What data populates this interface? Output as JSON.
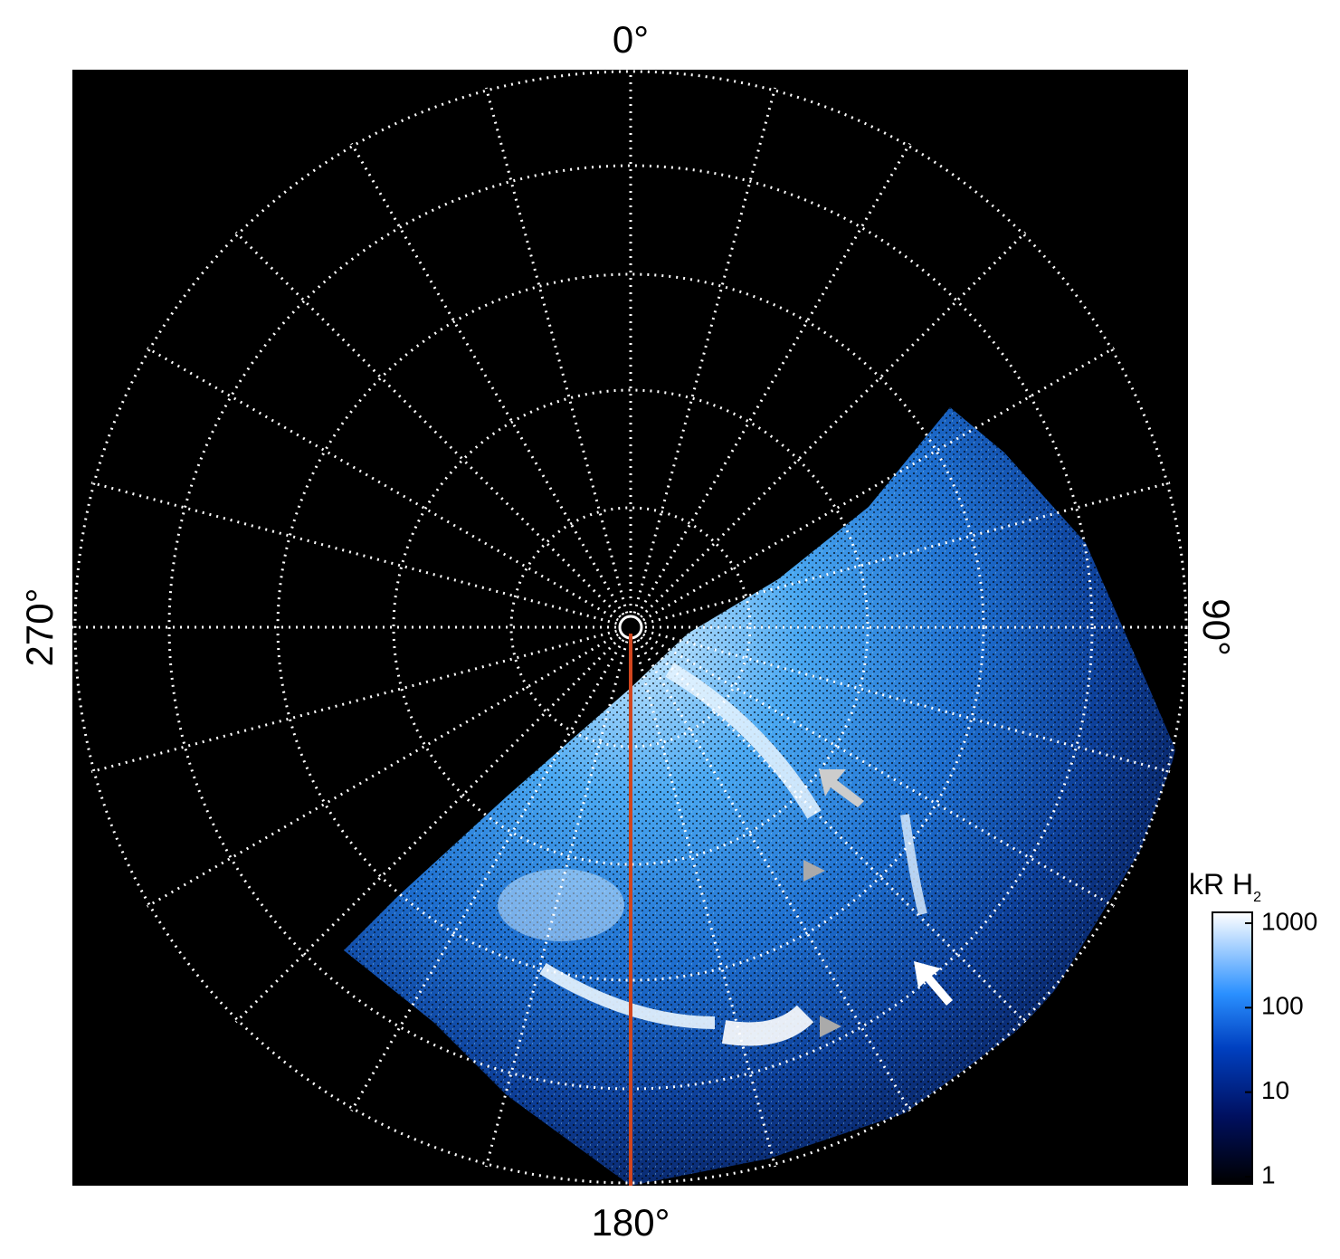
{
  "labels": {
    "top": "0°",
    "right": "90°",
    "bottom": "180°",
    "left": "270°"
  },
  "colorbar": {
    "title": "kR H",
    "title_sub": "2",
    "ticks": [
      "1",
      "10",
      "100",
      "1000"
    ]
  }
}
